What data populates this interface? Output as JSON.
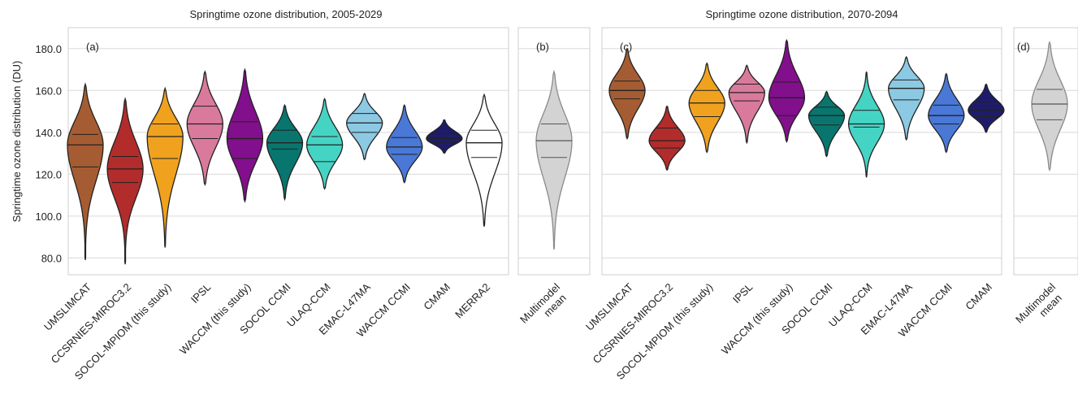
{
  "chart_data": [
    {
      "type": "violin",
      "title": "Springtime ozone distribution, 2005-2029",
      "panel_label": "(a)",
      "ylabel": "Springtime ozone distribution (DU)",
      "ylim": [
        72,
        190
      ],
      "yticks": [
        "80.0",
        "100.0",
        "120.0",
        "140.0",
        "160.0",
        "180.0"
      ],
      "grid": "horizontal",
      "series": [
        {
          "name": "UMSLIMCAT",
          "color": "#a65c32",
          "min": 79,
          "max": 163,
          "q1": 123.5,
          "median": 134,
          "q3": 139,
          "mode": 134
        },
        {
          "name": "CCSRNIES-MIROC3.2",
          "color": "#b22c2c",
          "min": 77,
          "max": 156,
          "q1": 116,
          "median": 122.5,
          "q3": 128.5,
          "mode": 122.5
        },
        {
          "name": "SOCOL-MPIOM (this study)",
          "color": "#f0a21f",
          "min": 85,
          "max": 161,
          "q1": 127.5,
          "median": 138,
          "q3": 144,
          "mode": 138
        },
        {
          "name": "IPSL",
          "color": "#d97a9c",
          "min": 115,
          "max": 169,
          "q1": 137,
          "median": 144,
          "q3": 152.5,
          "mode": 144
        },
        {
          "name": "WACCM (this study)",
          "color": "#820f8c",
          "min": 107,
          "max": 170,
          "q1": 127.5,
          "median": 137,
          "q3": 145,
          "mode": 137
        },
        {
          "name": "SOCOL CCMI",
          "color": "#08766e",
          "min": 108,
          "max": 153,
          "q1": 132,
          "median": 135,
          "q3": 141,
          "mode": 135
        },
        {
          "name": "ULAQ-CCM",
          "color": "#45d4c4",
          "min": 113,
          "max": 156,
          "q1": 126,
          "median": 134,
          "q3": 138,
          "mode": 134
        },
        {
          "name": "EMAC-L47MA",
          "color": "#8cc9e3",
          "min": 127,
          "max": 158.5,
          "q1": 140,
          "median": 144.5,
          "q3": 149,
          "mode": 144.5
        },
        {
          "name": "WACCM CCMI",
          "color": "#4a78d6",
          "min": 116,
          "max": 153,
          "q1": 129.5,
          "median": 133,
          "q3": 137.5,
          "mode": 133
        },
        {
          "name": "CMAM",
          "color": "#1e1c6a",
          "min": 130,
          "max": 146,
          "q1": 135,
          "median": 137,
          "q3": 139.5,
          "mode": 137
        },
        {
          "name": "MERRA2",
          "color": "#ffffff",
          "min": 95,
          "max": 158,
          "q1": 128,
          "median": 135,
          "q3": 141,
          "mode": 135
        }
      ]
    },
    {
      "type": "violin",
      "title": "",
      "panel_label": "(b)",
      "ylim": [
        72,
        190
      ],
      "series": [
        {
          "name": "Multimodel\nmean",
          "color": "#d3d3d3",
          "edge": "#8a8a8a",
          "min": 84,
          "max": 169,
          "q1": 128,
          "median": 136,
          "q3": 144,
          "mode": 136
        }
      ]
    },
    {
      "type": "violin",
      "title": "Springtime ozone distribution, 2070-2094",
      "panel_label": "(c)",
      "ylim": [
        72,
        190
      ],
      "series": [
        {
          "name": "UMSLIMCAT",
          "color": "#a65c32",
          "min": 137,
          "max": 180,
          "q1": 156,
          "median": 160,
          "q3": 164.5,
          "mode": 160
        },
        {
          "name": "CCSRNIES-MIROC3.2",
          "color": "#b22c2c",
          "min": 122,
          "max": 152.5,
          "q1": 132.5,
          "median": 136,
          "q3": 142,
          "mode": 136
        },
        {
          "name": "SOCOL-MPIOM (this study)",
          "color": "#f0a21f",
          "min": 130.5,
          "max": 173,
          "q1": 147.5,
          "median": 154,
          "q3": 160,
          "mode": 154
        },
        {
          "name": "IPSL",
          "color": "#d97a9c",
          "min": 135,
          "max": 172,
          "q1": 155,
          "median": 159,
          "q3": 163,
          "mode": 159
        },
        {
          "name": "WACCM (this study)",
          "color": "#820f8c",
          "min": 135.5,
          "max": 184,
          "q1": 148,
          "median": 156.5,
          "q3": 164,
          "mode": 156.5
        },
        {
          "name": "SOCOL CCMI",
          "color": "#08766e",
          "min": 128.5,
          "max": 159.5,
          "q1": 143.5,
          "median": 148,
          "q3": 152,
          "mode": 148
        },
        {
          "name": "ULAQ-CCM",
          "color": "#45d4c4",
          "min": 118.5,
          "max": 169,
          "q1": 142.5,
          "median": 144,
          "q3": 150.5,
          "mode": 144
        },
        {
          "name": "EMAC-L47MA",
          "color": "#8cc9e3",
          "min": 136.5,
          "max": 176,
          "q1": 155.5,
          "median": 161,
          "q3": 165,
          "mode": 161
        },
        {
          "name": "WACCM CCMI",
          "color": "#4a78d6",
          "min": 130.5,
          "max": 168,
          "q1": 144,
          "median": 148,
          "q3": 153,
          "mode": 148
        },
        {
          "name": "CMAM",
          "color": "#1e1c6a",
          "min": 140,
          "max": 163,
          "q1": 147.5,
          "median": 150.5,
          "q3": 154.5,
          "mode": 150.5
        }
      ]
    },
    {
      "type": "violin",
      "title": "",
      "panel_label": "(d)",
      "ylim": [
        72,
        190
      ],
      "series": [
        {
          "name": "Multimodel\nmean",
          "color": "#d3d3d3",
          "edge": "#8a8a8a",
          "min": 122,
          "max": 183,
          "q1": 146,
          "median": 153.5,
          "q3": 160.5,
          "mode": 153.5
        }
      ]
    }
  ]
}
